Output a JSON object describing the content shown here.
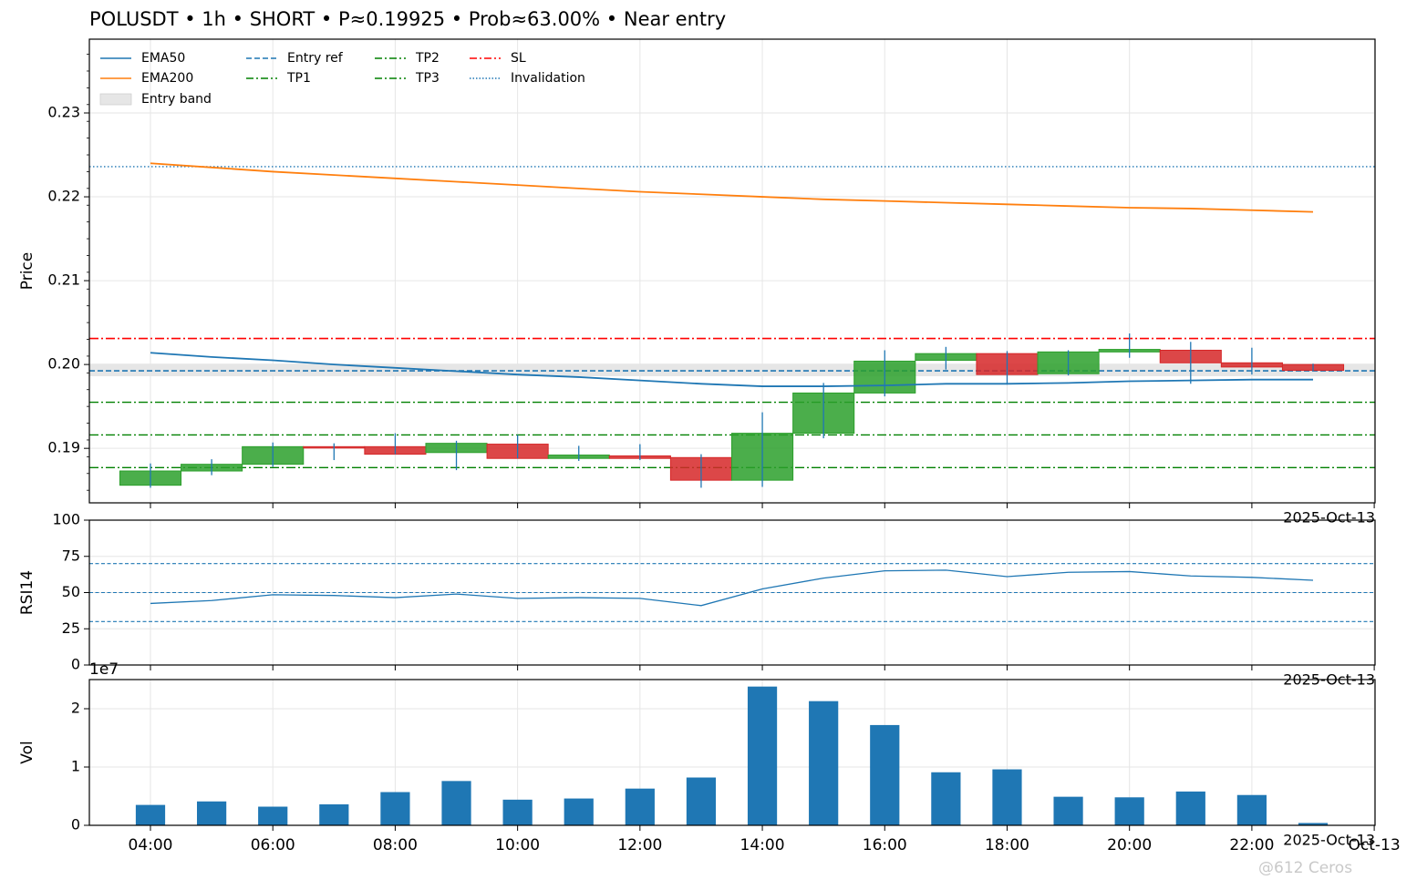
{
  "title": "POLUSDT • 1h • SHORT • P≈0.19925 • Prob≈63.00% • Near entry",
  "watermark": "@612 Ceros",
  "colors": {
    "up": "#2ca02c",
    "down": "#d62728",
    "ema50": "#1f77b4",
    "ema200": "#ff7f0e",
    "entry": "#1f77b4",
    "tp": "#008000",
    "sl": "#ff0000",
    "invalidation": "#1f77b4",
    "band": "#e6e6e6",
    "volume": "#1f77b4",
    "rsi": "#1f77b4"
  },
  "chart_data": [
    {
      "type": "candlestick",
      "ylabel": "Price",
      "ylim": [
        0.1835,
        0.2388
      ],
      "yticks": [
        "0.19",
        "0.20",
        "0.21",
        "0.22",
        "0.23"
      ],
      "ytick_values": [
        0.19,
        0.2,
        0.21,
        0.22,
        0.23
      ],
      "corner_date_label": "2025-Oct-13",
      "legend": {
        "placement": "top-left",
        "items": [
          {
            "label": "EMA50",
            "style": "solid",
            "color": "#1f77b4"
          },
          {
            "label": "EMA200",
            "style": "solid",
            "color": "#ff7f0e"
          },
          {
            "label": "Entry band",
            "style": "patch",
            "color": "#e6e6e6"
          },
          {
            "label": "Entry ref",
            "style": "dashed",
            "color": "#1f77b4"
          },
          {
            "label": "TP1",
            "style": "dashdot",
            "color": "#008000"
          },
          {
            "label": "TP2",
            "style": "dashdot",
            "color": "#008000"
          },
          {
            "label": "TP3",
            "style": "dashdot",
            "color": "#008000"
          },
          {
            "label": "SL",
            "style": "dashdot",
            "color": "#ff0000"
          },
          {
            "label": "Invalidation",
            "style": "dotted",
            "color": "#1f77b4"
          }
        ]
      },
      "hours": [
        4,
        5,
        6,
        7,
        8,
        9,
        10,
        11,
        12,
        13,
        14,
        15,
        16,
        17,
        18,
        19,
        20,
        21,
        22,
        23
      ],
      "candles": [
        {
          "hour": 4,
          "open": 0.1856,
          "high": 0.1882,
          "low": 0.1853,
          "close": 0.1873
        },
        {
          "hour": 5,
          "open": 0.1873,
          "high": 0.1887,
          "low": 0.1868,
          "close": 0.1881
        },
        {
          "hour": 6,
          "open": 0.1881,
          "high": 0.1907,
          "low": 0.1878,
          "close": 0.1902
        },
        {
          "hour": 7,
          "open": 0.1902,
          "high": 0.1906,
          "low": 0.1886,
          "close": 0.1901
        },
        {
          "hour": 8,
          "open": 0.1902,
          "high": 0.1918,
          "low": 0.1893,
          "close": 0.1893
        },
        {
          "hour": 9,
          "open": 0.1895,
          "high": 0.1909,
          "low": 0.1874,
          "close": 0.1906
        },
        {
          "hour": 10,
          "open": 0.1905,
          "high": 0.1916,
          "low": 0.1888,
          "close": 0.1888
        },
        {
          "hour": 11,
          "open": 0.1888,
          "high": 0.1903,
          "low": 0.1885,
          "close": 0.1892
        },
        {
          "hour": 12,
          "open": 0.1891,
          "high": 0.1905,
          "low": 0.1886,
          "close": 0.1888
        },
        {
          "hour": 13,
          "open": 0.1889,
          "high": 0.1893,
          "low": 0.1853,
          "close": 0.1862
        },
        {
          "hour": 14,
          "open": 0.1862,
          "high": 0.1943,
          "low": 0.1854,
          "close": 0.1918
        },
        {
          "hour": 15,
          "open": 0.1918,
          "high": 0.1978,
          "low": 0.1912,
          "close": 0.1966
        },
        {
          "hour": 16,
          "open": 0.1966,
          "high": 0.2017,
          "low": 0.1962,
          "close": 0.2004
        },
        {
          "hour": 17,
          "open": 0.2005,
          "high": 0.2021,
          "low": 0.1994,
          "close": 0.2013
        },
        {
          "hour": 18,
          "open": 0.2013,
          "high": 0.2016,
          "low": 0.1976,
          "close": 0.1988
        },
        {
          "hour": 19,
          "open": 0.1989,
          "high": 0.2017,
          "low": 0.1987,
          "close": 0.2015
        },
        {
          "hour": 20,
          "open": 0.2015,
          "high": 0.2037,
          "low": 0.2008,
          "close": 0.2018
        },
        {
          "hour": 21,
          "open": 0.2017,
          "high": 0.2027,
          "low": 0.1977,
          "close": 0.2002
        },
        {
          "hour": 22,
          "open": 0.2002,
          "high": 0.202,
          "low": 0.1988,
          "close": 0.1997
        },
        {
          "hour": 23,
          "open": 0.2,
          "high": 0.2001,
          "low": 0.1992,
          "close": 0.1993
        }
      ],
      "ema50": [
        0.2014,
        0.2009,
        0.2005,
        0.2,
        0.1996,
        0.1992,
        0.1988,
        0.1985,
        0.1981,
        0.1977,
        0.1974,
        0.1974,
        0.1975,
        0.1977,
        0.1977,
        0.1978,
        0.198,
        0.1981,
        0.1982,
        0.1982
      ],
      "ema200": [
        0.224,
        0.2235,
        0.223,
        0.2226,
        0.2222,
        0.2218,
        0.2214,
        0.221,
        0.2206,
        0.2203,
        0.22,
        0.2197,
        0.2195,
        0.2193,
        0.2191,
        0.2189,
        0.2187,
        0.2186,
        0.2184,
        0.2182
      ],
      "levels": {
        "entry_ref": 0.19925,
        "entry_band": [
          0.1986,
          0.2001
        ],
        "tp1": 0.1955,
        "tp2": 0.1916,
        "tp3": 0.1877,
        "sl": 0.2031,
        "invalidation": 0.2236
      }
    },
    {
      "type": "line",
      "ylabel": "RSI14",
      "ylim": [
        0,
        100
      ],
      "yticks": [
        "0",
        "25",
        "50",
        "75",
        "100"
      ],
      "ytick_values": [
        0,
        25,
        50,
        75,
        100
      ],
      "hlines": [
        30,
        50,
        70
      ],
      "corner_date_label": "2025-Oct-13",
      "hours": [
        4,
        5,
        6,
        7,
        8,
        9,
        10,
        11,
        12,
        13,
        14,
        15,
        16,
        17,
        18,
        19,
        20,
        21,
        22,
        23
      ],
      "values": [
        42.5,
        44.5,
        48.5,
        48.0,
        46.5,
        49.0,
        46.0,
        46.5,
        46.0,
        41.0,
        52.5,
        60.0,
        65.0,
        65.5,
        61.0,
        64.0,
        64.5,
        61.5,
        60.5,
        58.5
      ]
    },
    {
      "type": "bar",
      "ylabel": "Vol",
      "ylim": [
        0,
        2.5
      ],
      "scale_label": "1e7",
      "yticks": [
        "0",
        "1",
        "2"
      ],
      "ytick_values": [
        0,
        1,
        2
      ],
      "xticks": [
        "04:00",
        "06:00",
        "08:00",
        "10:00",
        "12:00",
        "14:00",
        "16:00",
        "18:00",
        "20:00",
        "22:00",
        "Oct-13"
      ],
      "xtick_hours": [
        4,
        6,
        8,
        10,
        12,
        14,
        16,
        18,
        20,
        22,
        24
      ],
      "corner_date_label": "2025-Oct-13",
      "hours": [
        4,
        5,
        6,
        7,
        8,
        9,
        10,
        11,
        12,
        13,
        14,
        15,
        16,
        17,
        18,
        19,
        20,
        21,
        22,
        23
      ],
      "values": [
        0.35,
        0.41,
        0.32,
        0.36,
        0.57,
        0.76,
        0.44,
        0.46,
        0.63,
        0.82,
        2.38,
        2.13,
        1.72,
        0.91,
        0.96,
        0.49,
        0.48,
        0.58,
        0.52,
        0.04
      ]
    }
  ]
}
